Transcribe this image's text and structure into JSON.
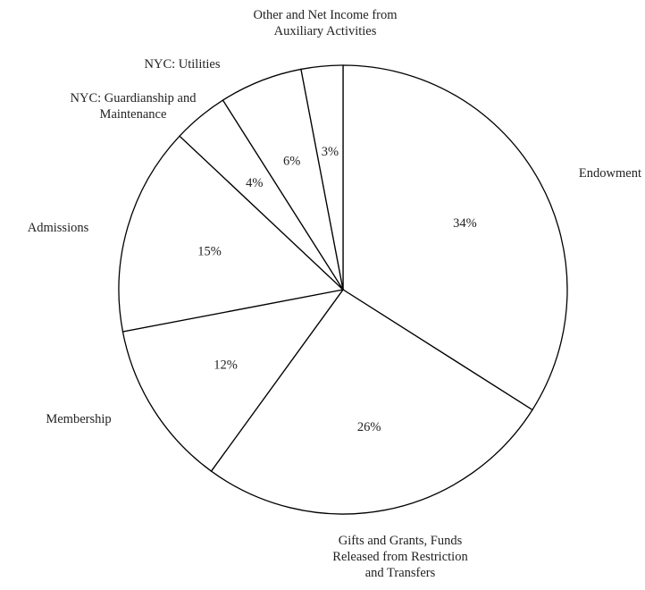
{
  "chart_data": {
    "type": "pie",
    "title": "",
    "start_angle_deg": 0,
    "direction": "clockwise",
    "slices": [
      {
        "label": "Endowment",
        "value": 34,
        "display": "34%"
      },
      {
        "label": "Gifts and Grants, Funds Released from Restriction and Transfers",
        "value": 26,
        "display": "26%"
      },
      {
        "label": "Membership",
        "value": 12,
        "display": "12%"
      },
      {
        "label": "Admissions",
        "value": 15,
        "display": "15%"
      },
      {
        "label": "NYC: Guardianship and Maintenance",
        "value": 4,
        "display": "4%"
      },
      {
        "label": "NYC: Utilities",
        "value": 6,
        "display": "6%"
      },
      {
        "label": "Other and Net Income from Auxiliary Activities",
        "value": 3,
        "display": "3%"
      }
    ],
    "label_lines": [
      [
        "Endowment"
      ],
      [
        "Gifts and Grants, Funds",
        "Released from Restriction",
        "and Transfers"
      ],
      [
        "Membership"
      ],
      [
        "Admissions"
      ],
      [
        "NYC: Guardianship and",
        "Maintenance"
      ],
      [
        "NYC: Utilities"
      ],
      [
        "Other and Net Income from",
        "Auxiliary Activities"
      ]
    ],
    "colors": {
      "fill": "#ffffff",
      "stroke": "#000000",
      "text": "#222222"
    }
  }
}
